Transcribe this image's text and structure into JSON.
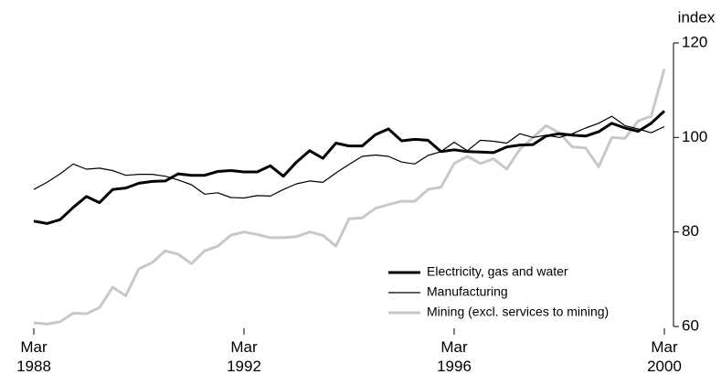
{
  "chart_data": {
    "type": "line",
    "y_axis_label": "index",
    "categories": [
      "Mar 1988",
      null,
      null,
      null,
      null,
      null,
      null,
      null,
      null,
      null,
      null,
      null,
      null,
      null,
      null,
      null,
      "Mar 1992",
      null,
      null,
      null,
      null,
      null,
      null,
      null,
      null,
      null,
      null,
      null,
      null,
      null,
      null,
      null,
      "Mar 1996",
      null,
      null,
      null,
      null,
      null,
      null,
      null,
      null,
      null,
      null,
      null,
      null,
      null,
      null,
      null,
      "Mar 2000"
    ],
    "ylim": [
      60,
      120
    ],
    "yticks": [
      60,
      80,
      100,
      120
    ],
    "y_axis_side": "right",
    "grid": false,
    "legend": "lower right",
    "series": [
      {
        "name": "Electricity, gas and water",
        "color": "#000000",
        "width": 3,
        "values": [
          82.3,
          81.8,
          82.6,
          85.2,
          87.5,
          86.2,
          89.0,
          89.3,
          90.3,
          90.7,
          90.8,
          92.3,
          92.0,
          92.0,
          92.8,
          93.0,
          92.7,
          92.7,
          94.0,
          91.8,
          94.8,
          97.2,
          95.6,
          98.8,
          98.2,
          98.2,
          100.6,
          101.8,
          99.3,
          99.6,
          99.4,
          97.0,
          97.4,
          97.0,
          96.9,
          96.8,
          98.0,
          98.4,
          98.5,
          100.3,
          100.8,
          100.5,
          100.3,
          101.2,
          103.0,
          102.0,
          101.3,
          103.0,
          105.6
        ]
      },
      {
        "name": "Manufacturing",
        "color": "#000000",
        "width": 1.2,
        "values": [
          89.0,
          90.5,
          92.3,
          94.4,
          93.3,
          93.5,
          93.0,
          92.0,
          92.2,
          92.2,
          91.8,
          91.0,
          90.0,
          88.0,
          88.3,
          87.3,
          87.2,
          87.7,
          87.6,
          89.0,
          90.2,
          90.8,
          90.5,
          92.5,
          94.3,
          96.0,
          96.3,
          96.0,
          94.8,
          94.4,
          96.2,
          97.0,
          99.0,
          97.2,
          99.4,
          99.2,
          98.8,
          100.8,
          100.0,
          100.5,
          100.0,
          100.8,
          102.0,
          103.0,
          104.5,
          102.5,
          101.8,
          101.0,
          102.3
        ]
      },
      {
        "name": "Mining (excl. services to mining)",
        "color": "#c8c8c8",
        "width": 3,
        "values": [
          60.8,
          60.5,
          61.0,
          62.8,
          62.7,
          64.0,
          68.3,
          66.5,
          72.2,
          73.5,
          76.0,
          75.3,
          73.3,
          76.0,
          77.0,
          79.3,
          80.0,
          79.5,
          78.8,
          78.8,
          79.0,
          80.0,
          79.3,
          77.0,
          82.8,
          83.0,
          85.0,
          85.8,
          86.5,
          86.5,
          89.0,
          89.5,
          94.5,
          96.0,
          94.5,
          95.5,
          93.3,
          97.5,
          100.0,
          102.5,
          101.0,
          98.0,
          97.8,
          93.8,
          100.0,
          99.8,
          103.5,
          104.5,
          114.5
        ]
      }
    ]
  }
}
